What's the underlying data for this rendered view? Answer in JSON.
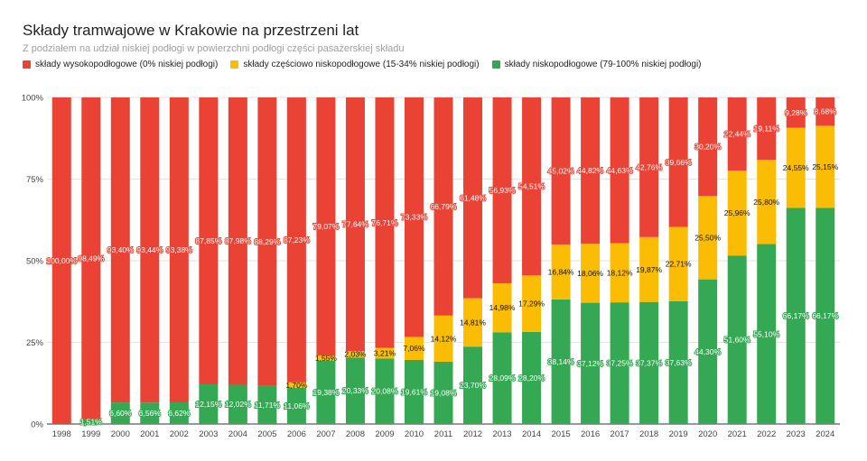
{
  "chart_data": {
    "type": "bar",
    "stacked": true,
    "stack_mode": "percent",
    "title": "Składy tramwajowe w Krakowie na przestrzeni lat",
    "subtitle": "Z podziałem na udział niskiej podłogi w powierzchni podłogi części pasażerskiej składu",
    "xlabel": "",
    "ylabel": "",
    "ylim": [
      0,
      100
    ],
    "y_ticks": [
      "0%",
      "25%",
      "50%",
      "75%",
      "100%"
    ],
    "legend_position": "top-left",
    "categories": [
      "1998",
      "1999",
      "2000",
      "2001",
      "2002",
      "2003",
      "2004",
      "2005",
      "2006",
      "2007",
      "2008",
      "2009",
      "2010",
      "2011",
      "2012",
      "2013",
      "2014",
      "2015",
      "2016",
      "2017",
      "2018",
      "2019",
      "2020",
      "2021",
      "2022",
      "2023",
      "2024"
    ],
    "series": [
      {
        "name": "składy niskopodłogowe (79-100% niskiej podłogi)",
        "color": "#34a853",
        "values": [
          0,
          1.51,
          6.6,
          6.56,
          6.62,
          12.15,
          12.02,
          11.71,
          11.06,
          19.38,
          20.33,
          20.08,
          19.61,
          19.08,
          23.7,
          28.09,
          28.2,
          38.14,
          37.12,
          37.25,
          37.37,
          37.63,
          44.3,
          51.6,
          55.1,
          66.17,
          66.17
        ],
        "labels": [
          "",
          "1,51%",
          "6,60%",
          "6,56%",
          "6,62%",
          "12,15%",
          "12,02%",
          "11,71%",
          "11,06%",
          "19,38%",
          "20,33%",
          "20,08%",
          "19,61%",
          "19,08%",
          "23,70%",
          "28,09%",
          "28,20%",
          "38,14%",
          "37,12%",
          "37,25%",
          "37,37%",
          "37,63%",
          "44,30%",
          "51,60%",
          "55,10%",
          "66,17%",
          "66,17%"
        ]
      },
      {
        "name": "składy częściowo niskopodłogowe (15-34% niskiej podłogi)",
        "color": "#fbbc04",
        "values": [
          0,
          0,
          0,
          0,
          0,
          0,
          0,
          0,
          1.7,
          1.55,
          2.03,
          3.21,
          7.06,
          14.12,
          14.81,
          14.98,
          17.29,
          16.84,
          18.06,
          18.12,
          19.87,
          22.71,
          25.5,
          25.96,
          25.8,
          24.55,
          25.15
        ],
        "labels": [
          "",
          "",
          "",
          "",
          "",
          "",
          "",
          "",
          "1,70%",
          "1,55%",
          "2,03%",
          "3,21%",
          "7,06%",
          "14,12%",
          "14,81%",
          "14,98%",
          "17,29%",
          "16,84%",
          "18,06%",
          "18,12%",
          "19,87%",
          "22,71%",
          "25,50%",
          "25,96%",
          "25,80%",
          "24,55%",
          "25,15%"
        ]
      },
      {
        "name": "składy wysokopodłogowe (0% niskiej podłogi)",
        "color": "#ea4335",
        "values": [
          100.0,
          98.49,
          93.4,
          93.44,
          93.38,
          87.85,
          87.98,
          88.29,
          87.23,
          79.07,
          77.64,
          76.71,
          73.33,
          66.79,
          61.48,
          56.93,
          54.51,
          45.02,
          44.82,
          44.63,
          42.76,
          39.66,
          30.2,
          22.44,
          19.11,
          9.28,
          8.68
        ],
        "labels": [
          "100,00%",
          "98,49%",
          "93,40%",
          "93,44%",
          "93,38%",
          "87,85%",
          "87,98%",
          "88,29%",
          "87,23%",
          "79,07%",
          "77,64%",
          "76,71%",
          "73,33%",
          "66,79%",
          "61,48%",
          "56,93%",
          "54,51%",
          "45,02%",
          "44,82%",
          "44,63%",
          "42,76%",
          "39,66%",
          "30,20%",
          "22,44%",
          "19,11%",
          "9,28%",
          "8,68%"
        ]
      }
    ]
  },
  "legend": {
    "items": [
      {
        "label": "składy wysokopodłogowe (0% niskiej podłogi)",
        "color": "#ea4335"
      },
      {
        "label": "składy częściowo niskopodłogowe (15-34% niskiej podłogi)",
        "color": "#fbbc04"
      },
      {
        "label": "składy niskopodłogowe (79-100% niskiej podłogi)",
        "color": "#34a853"
      }
    ]
  }
}
